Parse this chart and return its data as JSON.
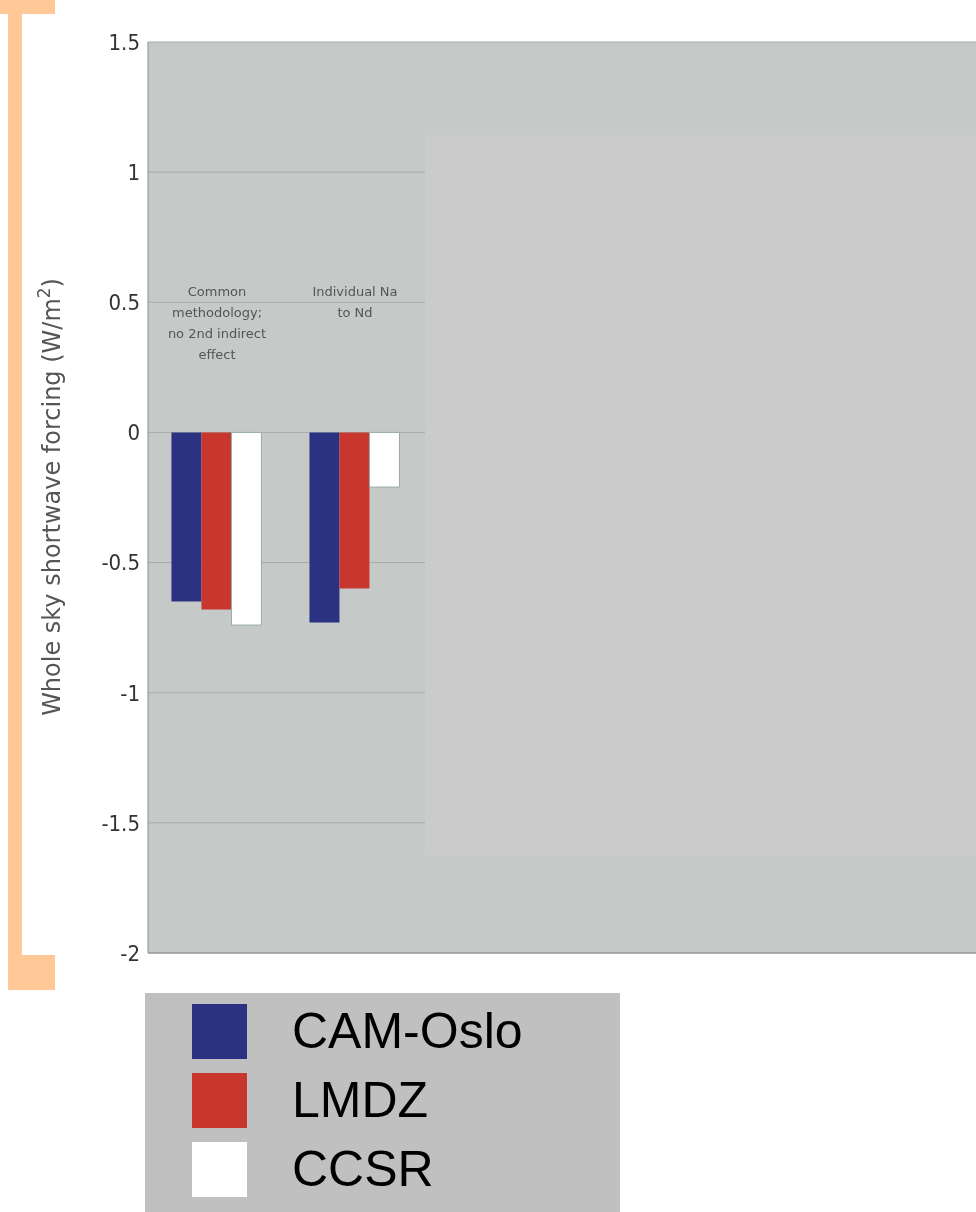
{
  "chart_data": {
    "type": "bar",
    "ylabel": "Whole sky shortwave forcing (W/m$^{2}$)",
    "categories": [
      "Common\nmethodology;\nno 2nd indirect\neffect",
      "Individual Na\nto Nd",
      null,
      null,
      null,
      null
    ],
    "series": [
      {
        "name": "CAM-Oslo",
        "color": "#2b3282",
        "values": [
          -0.65,
          -0.73,
          null,
          null,
          null,
          null
        ]
      },
      {
        "name": "LMDZ",
        "color": "#c8372d",
        "values": [
          -0.68,
          -0.6,
          null,
          null,
          null,
          null
        ]
      },
      {
        "name": "CCSR",
        "color": "#ffffff",
        "values": [
          -0.74,
          -0.21,
          null,
          null,
          null,
          null
        ]
      }
    ],
    "ylim": [
      -2,
      1.5
    ],
    "yticks": [
      -2,
      -1.5,
      -1,
      -0.5,
      0,
      0.5,
      1,
      1.5
    ],
    "grid": "y",
    "legend": "bottom"
  }
}
